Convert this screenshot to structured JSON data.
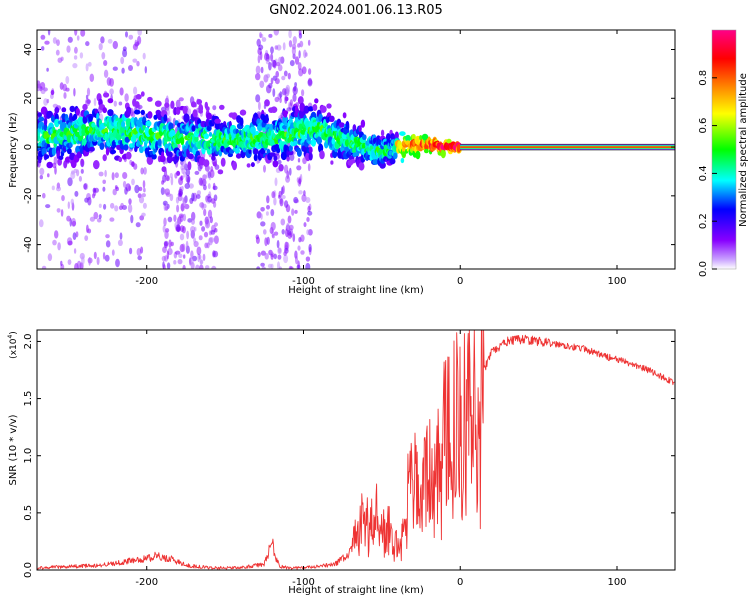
{
  "title": "GN02.2024.001.06.13.R05",
  "chart_data": [
    {
      "type": "heatmap",
      "xlabel": "Height of straight line (km)",
      "ylabel": "Frequency (Hz)",
      "xlim": [
        -270,
        137
      ],
      "ylim": [
        -50,
        48
      ],
      "xticks": [
        -200,
        -100,
        0,
        100
      ],
      "yticks": [
        -40,
        -20,
        0,
        20,
        40
      ],
      "grid": false,
      "colorbar": {
        "label": "Normalized spectral amplitude",
        "range": [
          0,
          1
        ],
        "ticks": [
          "0.0",
          "0.2",
          "0.4",
          "0.6",
          "0.8"
        ],
        "tick_values": [
          0.0,
          0.2,
          0.4,
          0.6,
          0.8
        ],
        "colors": [
          "#ffffff",
          "#8800ff",
          "#0000ff",
          "#00ffff",
          "#00ff00",
          "#ffff00",
          "#ff8800",
          "#ff0000",
          "#ff0088"
        ]
      },
      "ridge": [
        {
          "x": -265,
          "y": 4
        },
        {
          "x": -240,
          "y": 6
        },
        {
          "x": -220,
          "y": 7
        },
        {
          "x": -200,
          "y": 5
        },
        {
          "x": -180,
          "y": 4
        },
        {
          "x": -160,
          "y": 3
        },
        {
          "x": -140,
          "y": 3
        },
        {
          "x": -120,
          "y": 4
        },
        {
          "x": -100,
          "y": 6
        },
        {
          "x": -90,
          "y": 8
        },
        {
          "x": -80,
          "y": 4
        },
        {
          "x": -70,
          "y": 2
        },
        {
          "x": -60,
          "y": 0
        },
        {
          "x": -50,
          "y": -2
        },
        {
          "x": -40,
          "y": 0
        },
        {
          "x": -30,
          "y": 1
        },
        {
          "x": -20,
          "y": 1
        },
        {
          "x": -10,
          "y": 0
        },
        {
          "x": 0,
          "y": 0
        },
        {
          "x": 50,
          "y": 0
        },
        {
          "x": 100,
          "y": 0
        },
        {
          "x": 137,
          "y": 0
        }
      ],
      "ridge_width": [
        {
          "x": -265,
          "w": 10
        },
        {
          "x": -200,
          "w": 10
        },
        {
          "x": -140,
          "w": 9
        },
        {
          "x": -100,
          "w": 11
        },
        {
          "x": -80,
          "w": 8
        },
        {
          "x": -60,
          "w": 8
        },
        {
          "x": -40,
          "w": 5
        },
        {
          "x": -20,
          "w": 3
        },
        {
          "x": 0,
          "w": 1
        },
        {
          "x": 137,
          "w": 1
        }
      ],
      "scatter_bands": [
        {
          "x_min": -270,
          "x_max": -200,
          "y_min": -50,
          "y_max": 48,
          "level": 0.15
        },
        {
          "x_min": -190,
          "x_max": -155,
          "y_min": -50,
          "y_max": 20,
          "level": 0.15
        },
        {
          "x_min": -130,
          "x_max": -95,
          "y_min": -50,
          "y_max": 48,
          "level": 0.15
        }
      ],
      "steady_line": {
        "x_from": 0,
        "x_to": 137,
        "y": 0,
        "level": 0.9
      }
    },
    {
      "type": "line",
      "xlabel": "Height of straight line (km)",
      "ylabel": "SNR (10 * v/v)",
      "yscale_label": "(x10",
      "yscale_exp": "4",
      "yscale_close": ")",
      "xlim": [
        -270,
        137
      ],
      "ylim": [
        0,
        2.1
      ],
      "xticks": [
        -200,
        -100,
        0,
        100
      ],
      "yticks": [
        0.0,
        0.5,
        1.0,
        1.5,
        2.0
      ],
      "ytick_labels": [
        "0.0",
        "0.5",
        "1.0",
        "1.5",
        "2.0"
      ],
      "color": "#ee3333",
      "grid": false,
      "series": [
        {
          "x": [
            -270,
            -250,
            -230,
            -215,
            -200,
            -195,
            -185,
            -175,
            -160,
            -140,
            -125,
            -120,
            -118,
            -115,
            -110,
            -100,
            -90,
            -80,
            -70,
            -65,
            -60,
            -55,
            -52,
            -48,
            -45,
            -42,
            -38,
            -35,
            -30,
            -25,
            -20,
            -15,
            -10,
            -5,
            0,
            5,
            10,
            15,
            20,
            25,
            30,
            40,
            50,
            60,
            70,
            80,
            90,
            100,
            110,
            120,
            130,
            137
          ],
          "y": [
            0.02,
            0.03,
            0.04,
            0.07,
            0.1,
            0.12,
            0.1,
            0.04,
            0.02,
            0.02,
            0.05,
            0.25,
            0.12,
            0.03,
            0.02,
            0.02,
            0.03,
            0.05,
            0.15,
            0.4,
            0.55,
            0.35,
            0.6,
            0.3,
            0.4,
            0.2,
            0.3,
            0.6,
            0.8,
            0.7,
            0.85,
            0.95,
            1.2,
            1.3,
            1.4,
            1.55,
            1.6,
            1.75,
            1.9,
            1.95,
            2.0,
            2.02,
            2.0,
            1.98,
            1.96,
            1.93,
            1.88,
            1.84,
            1.8,
            1.75,
            1.68,
            1.64
          ]
        }
      ]
    }
  ]
}
